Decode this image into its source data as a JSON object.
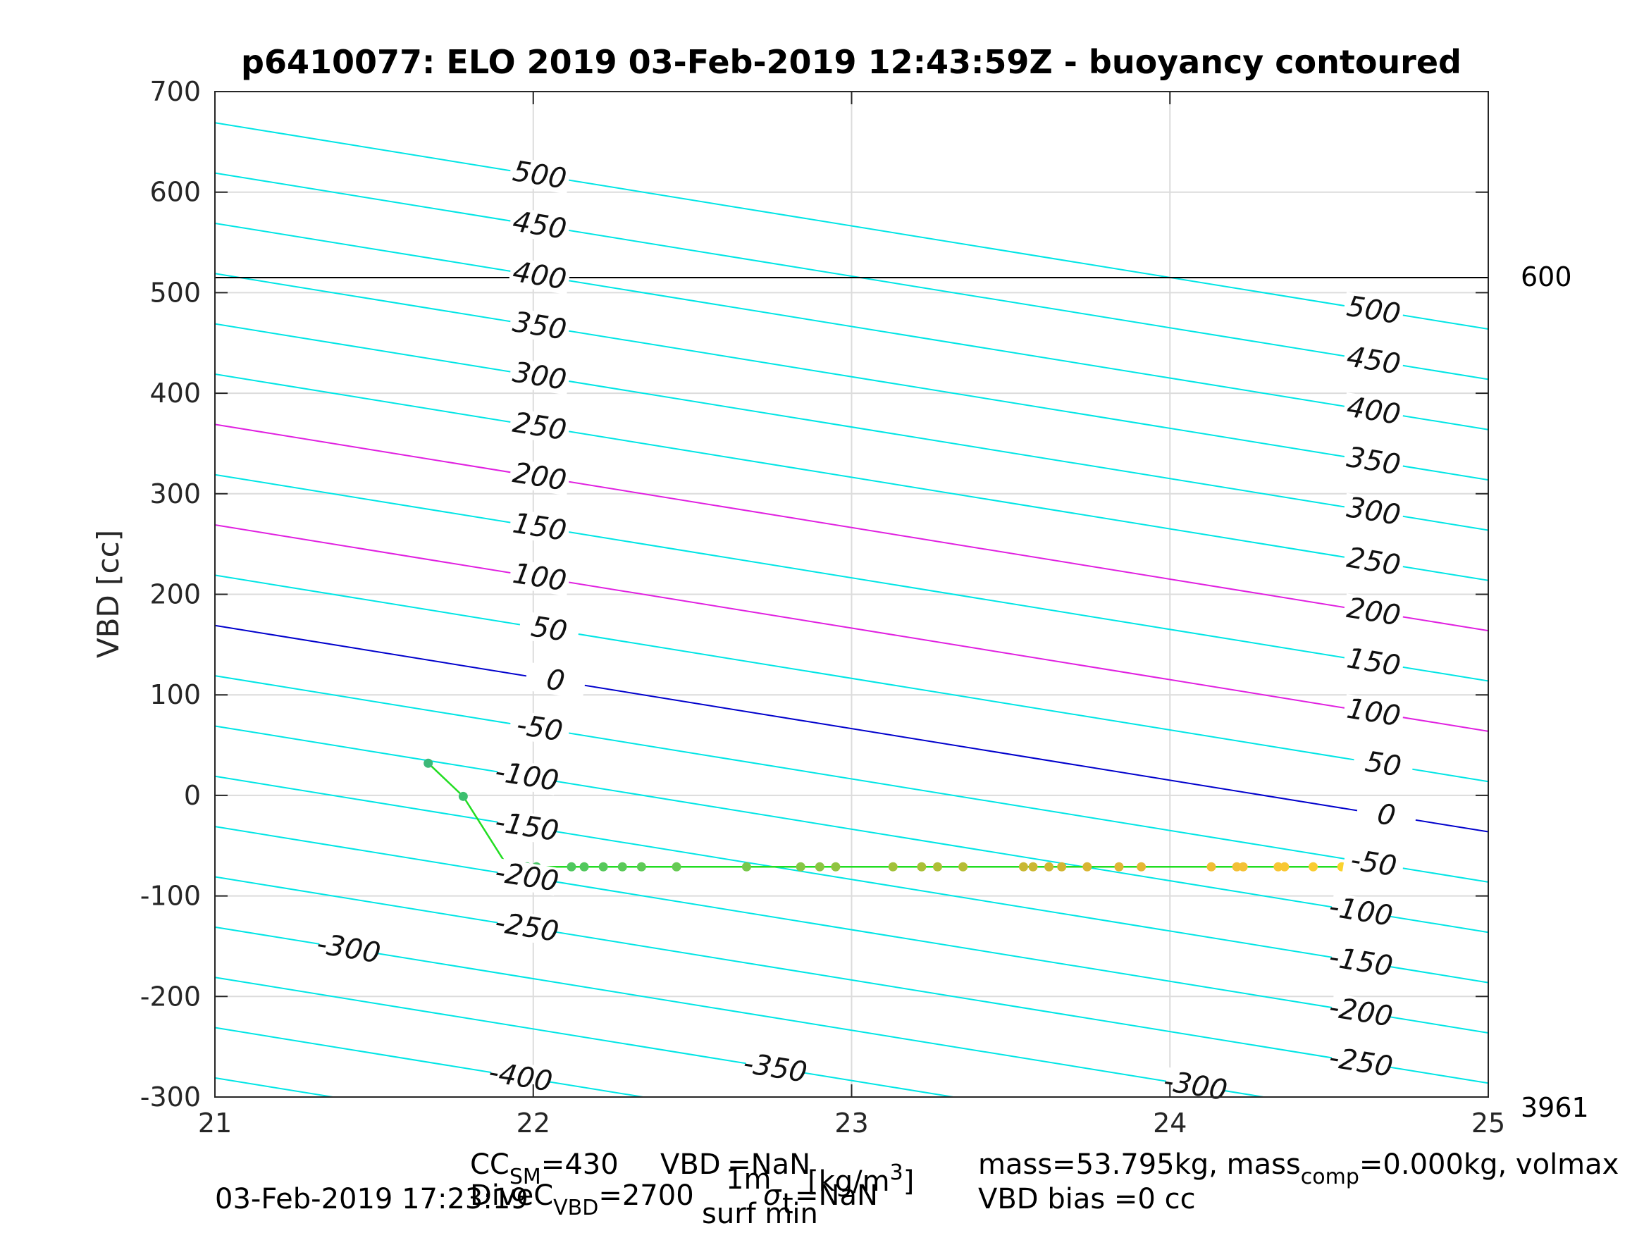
{
  "chart_data": {
    "type": "line",
    "title": "p6410077: ELO 2019 03-Feb-2019 12:43:59Z - buoyancy contoured",
    "xlabel": "",
    "ylabel": "VBD [cc]",
    "xlim": [
      21,
      25
    ],
    "ylim": [
      -300,
      700
    ],
    "xticks": [
      21,
      22,
      23,
      24,
      25
    ],
    "yticks": [
      -300,
      -200,
      -100,
      0,
      100,
      200,
      300,
      400,
      500,
      600,
      700
    ],
    "grid": true,
    "contours": {
      "slope_cc_per_kg_m3": -51.3,
      "base_vbd_at_x21": 169,
      "levels": [
        -450,
        -400,
        -350,
        -300,
        -250,
        -200,
        -150,
        -100,
        -50,
        0,
        50,
        100,
        150,
        200,
        250,
        300,
        350,
        400,
        450,
        500
      ],
      "zero_color": "#0000cc",
      "highlight_levels": [
        100,
        200
      ],
      "highlight_color": "#e020e0",
      "default_color": "#00e5e5"
    },
    "contour_labels": [
      {
        "text": "500",
        "level": 500,
        "x": 22.02
      },
      {
        "text": "450",
        "level": 450,
        "x": 22.02
      },
      {
        "text": "400",
        "level": 400,
        "x": 22.02
      },
      {
        "text": "350",
        "level": 350,
        "x": 22.02
      },
      {
        "text": "300",
        "level": 300,
        "x": 22.02
      },
      {
        "text": "250",
        "level": 250,
        "x": 22.02
      },
      {
        "text": "200",
        "level": 200,
        "x": 22.02
      },
      {
        "text": "150",
        "level": 150,
        "x": 22.02
      },
      {
        "text": "100",
        "level": 100,
        "x": 22.02
      },
      {
        "text": "50",
        "level": 50,
        "x": 22.05
      },
      {
        "text": "0",
        "level": 0,
        "x": 22.07
      },
      {
        "text": "-50",
        "level": -50,
        "x": 22.02
      },
      {
        "text": "-100",
        "level": -100,
        "x": 21.98
      },
      {
        "text": "-150",
        "level": -150,
        "x": 21.98
      },
      {
        "text": "-200",
        "level": -200,
        "x": 21.98
      },
      {
        "text": "-250",
        "level": -250,
        "x": 21.98
      },
      {
        "text": "-300",
        "level": -300,
        "x": 21.42
      },
      {
        "text": "-400",
        "level": -400,
        "x": 21.96
      },
      {
        "text": "-350",
        "level": -350,
        "x": 22.76
      },
      {
        "text": "-300",
        "level": -300,
        "x": 24.08
      },
      {
        "text": "500",
        "level": 500,
        "x": 24.64
      },
      {
        "text": "450",
        "level": 450,
        "x": 24.64
      },
      {
        "text": "400",
        "level": 400,
        "x": 24.64
      },
      {
        "text": "350",
        "level": 350,
        "x": 24.64
      },
      {
        "text": "300",
        "level": 300,
        "x": 24.64
      },
      {
        "text": "250",
        "level": 250,
        "x": 24.64
      },
      {
        "text": "200",
        "level": 200,
        "x": 24.64
      },
      {
        "text": "150",
        "level": 150,
        "x": 24.64
      },
      {
        "text": "100",
        "level": 100,
        "x": 24.64
      },
      {
        "text": "50",
        "level": 50,
        "x": 24.67
      },
      {
        "text": "0",
        "level": 0,
        "x": 24.68
      },
      {
        "text": "-50",
        "level": -50,
        "x": 24.64
      },
      {
        "text": "-100",
        "level": -100,
        "x": 24.6
      },
      {
        "text": "-150",
        "level": -150,
        "x": 24.6
      },
      {
        "text": "-200",
        "level": -200,
        "x": 24.6
      },
      {
        "text": "-250",
        "level": -250,
        "x": 24.6
      }
    ],
    "reference_line": {
      "y": 515,
      "color": "#000000",
      "label": "600"
    },
    "corner_label": "3961",
    "series": [
      {
        "color": "#22dd22",
        "points": [
          {
            "x": 21.67,
            "y": 32,
            "c": "#3cb878"
          },
          {
            "x": 21.78,
            "y": -1,
            "c": "#3cbf6f"
          },
          {
            "x": 21.92,
            "y": -71,
            "c": "#40c468"
          },
          {
            "x": 21.98,
            "y": -71,
            "c": "#44c566"
          },
          {
            "x": 22.01,
            "y": -71,
            "c": "#47c664"
          },
          {
            "x": 22.12,
            "y": -71,
            "c": "#4fc75f"
          },
          {
            "x": 22.16,
            "y": -71,
            "c": "#52c85d"
          },
          {
            "x": 22.22,
            "y": -71,
            "c": "#56c85b"
          },
          {
            "x": 22.28,
            "y": -71,
            "c": "#5ac959"
          },
          {
            "x": 22.34,
            "y": -71,
            "c": "#5ec957"
          },
          {
            "x": 22.45,
            "y": -71,
            "c": "#66ca53"
          },
          {
            "x": 22.67,
            "y": -71,
            "c": "#78c84a"
          },
          {
            "x": 22.84,
            "y": -71,
            "c": "#86c644"
          },
          {
            "x": 22.9,
            "y": -71,
            "c": "#8bc542"
          },
          {
            "x": 22.95,
            "y": -71,
            "c": "#90c440"
          },
          {
            "x": 23.13,
            "y": -71,
            "c": "#a2c13a"
          },
          {
            "x": 23.22,
            "y": -71,
            "c": "#aabf37"
          },
          {
            "x": 23.27,
            "y": -71,
            "c": "#afbe36"
          },
          {
            "x": 23.35,
            "y": -71,
            "c": "#b6bc34"
          },
          {
            "x": 23.54,
            "y": -71,
            "c": "#c8b832"
          },
          {
            "x": 23.57,
            "y": -71,
            "c": "#cbb732"
          },
          {
            "x": 23.62,
            "y": -71,
            "c": "#cfb632"
          },
          {
            "x": 23.66,
            "y": -71,
            "c": "#d3b532"
          },
          {
            "x": 23.74,
            "y": -71,
            "c": "#d9b533"
          },
          {
            "x": 23.84,
            "y": -71,
            "c": "#e0b634"
          },
          {
            "x": 23.91,
            "y": -71,
            "c": "#e5b734"
          },
          {
            "x": 24.13,
            "y": -71,
            "c": "#f0bd35"
          },
          {
            "x": 24.21,
            "y": -71,
            "c": "#f3c035"
          },
          {
            "x": 24.23,
            "y": -71,
            "c": "#f4c135"
          },
          {
            "x": 24.34,
            "y": -71,
            "c": "#f7c634"
          },
          {
            "x": 24.36,
            "y": -71,
            "c": "#f8c733"
          },
          {
            "x": 24.45,
            "y": -71,
            "c": "#f9cc31"
          },
          {
            "x": 24.54,
            "y": -71,
            "c": "#fad22e"
          },
          {
            "x": 24.6,
            "y": -71,
            "c": "#fad62b"
          },
          {
            "x": 24.64,
            "y": -71,
            "c": "#fbd929"
          },
          {
            "x": 24.68,
            "y": -71,
            "c": "#fbdc27"
          },
          {
            "x": 24.7,
            "y": -71,
            "c": "#fbde25"
          }
        ]
      }
    ]
  },
  "footer": {
    "cc_main": "CC",
    "cc_sub": "SM",
    "cc_value": "=430",
    "vbd_main": "VBD",
    "vbd_sup": "1m",
    "vbd_value": "=NaN",
    "dive_main": "DiveC",
    "dive_sub": "VBD",
    "dive_value": "=2700",
    "sigma": "σ",
    "sigma_sub": "t",
    "sigma_value": "=NaN",
    "surf_min": "surf min",
    "kgm3": "[kg/m",
    "kgm3_sup": "3",
    "kgm3_close": "]",
    "mass_text": "mass=53.795kg, mass",
    "mass_sub": "comp",
    "mass_rest": "=0.000kg, volmax",
    "vbd_bias": "VBD bias =0 cc",
    "timestamp": "03-Feb-2019 17:23:19"
  }
}
